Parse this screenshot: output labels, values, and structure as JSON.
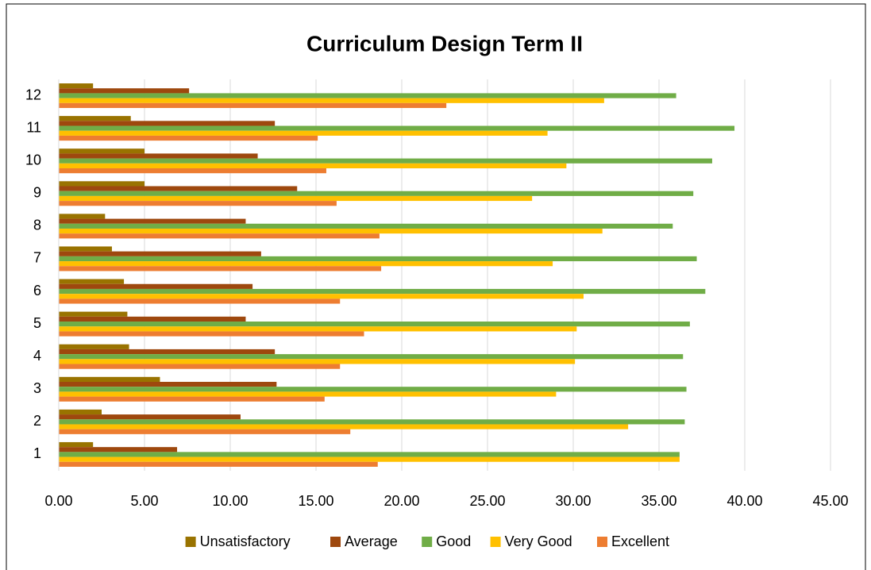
{
  "chart_data": {
    "type": "barh",
    "title": "Curriculum Design Term II",
    "categories": [
      "1",
      "2",
      "3",
      "4",
      "5",
      "6",
      "7",
      "8",
      "9",
      "10",
      "11",
      "12"
    ],
    "series": [
      {
        "name": "Unsatisfactory",
        "color": "#997300",
        "values": [
          2.0,
          2.5,
          5.9,
          4.1,
          4.0,
          3.8,
          3.1,
          2.7,
          5.0,
          5.0,
          4.2,
          2.0
        ]
      },
      {
        "name": "Average",
        "color": "#9e480e",
        "values": [
          6.9,
          10.6,
          12.7,
          12.6,
          10.9,
          11.3,
          11.8,
          10.9,
          13.9,
          11.6,
          12.6,
          7.6
        ]
      },
      {
        "name": "Good",
        "color": "#70ad47",
        "values": [
          36.2,
          36.5,
          36.6,
          36.4,
          36.8,
          37.7,
          37.2,
          35.8,
          37.0,
          38.1,
          39.4,
          36.0
        ]
      },
      {
        "name": "Very Good",
        "color": "#ffc000",
        "values": [
          36.2,
          33.2,
          29.0,
          30.1,
          30.2,
          30.6,
          28.8,
          31.7,
          27.6,
          29.6,
          28.5,
          31.8
        ]
      },
      {
        "name": "Excellent",
        "color": "#ed7d31",
        "values": [
          18.6,
          17.0,
          15.5,
          16.4,
          17.8,
          16.4,
          18.8,
          18.7,
          16.2,
          15.6,
          15.1,
          22.6
        ]
      }
    ],
    "xlim": [
      0,
      45
    ],
    "xticks": [
      {
        "value": 0,
        "label": "0.00"
      },
      {
        "value": 5,
        "label": "5.00"
      },
      {
        "value": 10,
        "label": "10.00"
      },
      {
        "value": 15,
        "label": "15.00"
      },
      {
        "value": 20,
        "label": "20.00"
      },
      {
        "value": 25,
        "label": "25.00"
      },
      {
        "value": 30,
        "label": "30.00"
      },
      {
        "value": 35,
        "label": "35.00"
      },
      {
        "value": 40,
        "label": "40.00"
      },
      {
        "value": 45,
        "label": "45.00"
      }
    ],
    "grid": true,
    "legend": "bottom"
  }
}
